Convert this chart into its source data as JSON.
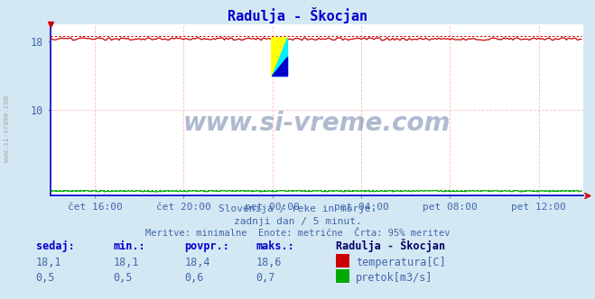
{
  "title": "Radulja - Škocjan",
  "title_color": "#0000cc",
  "bg_color": "#d4e8f4",
  "plot_bg_color": "#ffffff",
  "grid_color": "#ffbbbb",
  "xlabel_color": "#4466aa",
  "ylabel_color": "#4466aa",
  "xlim": [
    0,
    288
  ],
  "ylim": [
    0,
    20
  ],
  "x_tick_positions": [
    24,
    72,
    120,
    168,
    216,
    264
  ],
  "x_tick_labels": [
    "čet 16:00",
    "čet 20:00",
    "pet 00:00",
    "pet 04:00",
    "pet 08:00",
    "pet 12:00"
  ],
  "temp_color": "#cc0000",
  "flow_color": "#00aa00",
  "blue_baseline_color": "#0000cc",
  "arrow_color": "#cc0000",
  "watermark_text": "www.si-vreme.com",
  "watermark_color": "#1a3a7a",
  "subtitle1": "Slovenija / reke in morje.",
  "subtitle2": "zadnji dan / 5 minut.",
  "subtitle3": "Meritve: minimalne  Enote: metrične  Črta: 95% meritev",
  "subtitle_color": "#4466aa",
  "legend_title": "Radulja - Škocjan",
  "legend_title_color": "#000066",
  "table_header_color": "#0000cc",
  "table_value_color": "#4466aa",
  "left_label": "www.si-vreme.com",
  "left_label_color": "#aaaaaa",
  "icon_yellow": "#ffff00",
  "icon_cyan": "#00eeff",
  "icon_blue": "#0000cc"
}
